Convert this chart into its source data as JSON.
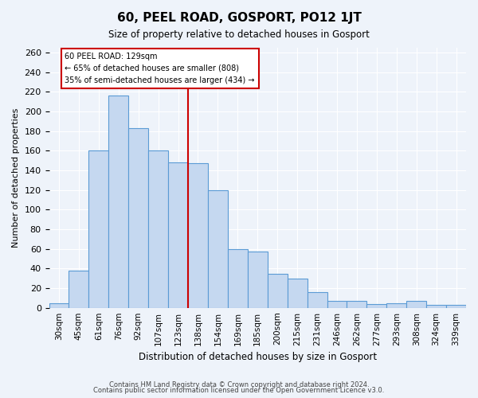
{
  "title": "60, PEEL ROAD, GOSPORT, PO12 1JT",
  "subtitle": "Size of property relative to detached houses in Gosport",
  "xlabel": "Distribution of detached houses by size in Gosport",
  "ylabel": "Number of detached properties",
  "bar_labels": [
    "30sqm",
    "45sqm",
    "61sqm",
    "76sqm",
    "92sqm",
    "107sqm",
    "123sqm",
    "138sqm",
    "154sqm",
    "169sqm",
    "185sqm",
    "200sqm",
    "215sqm",
    "231sqm",
    "246sqm",
    "262sqm",
    "277sqm",
    "293sqm",
    "308sqm",
    "324sqm",
    "339sqm"
  ],
  "bar_values": [
    5,
    38,
    160,
    216,
    183,
    160,
    148,
    147,
    120,
    60,
    57,
    35,
    30,
    16,
    7,
    7,
    4,
    5,
    7,
    3,
    3
  ],
  "bar_color": "#c5d8f0",
  "bar_edge_color": "#5b9bd5",
  "background_color": "#eef3fa",
  "grid_color": "#ffffff",
  "vline_color": "#cc0000",
  "vline_pos": 6.5,
  "annotation_title": "60 PEEL ROAD: 129sqm",
  "annotation_line1": "← 65% of detached houses are smaller (808)",
  "annotation_line2": "35% of semi-detached houses are larger (434) →",
  "annotation_box_color": "#ffffff",
  "annotation_box_edge": "#cc0000",
  "ylim": [
    0,
    265
  ],
  "yticks": [
    0,
    20,
    40,
    60,
    80,
    100,
    120,
    140,
    160,
    180,
    200,
    220,
    240,
    260
  ],
  "footer1": "Contains HM Land Registry data © Crown copyright and database right 2024.",
  "footer2": "Contains public sector information licensed under the Open Government Licence v3.0."
}
